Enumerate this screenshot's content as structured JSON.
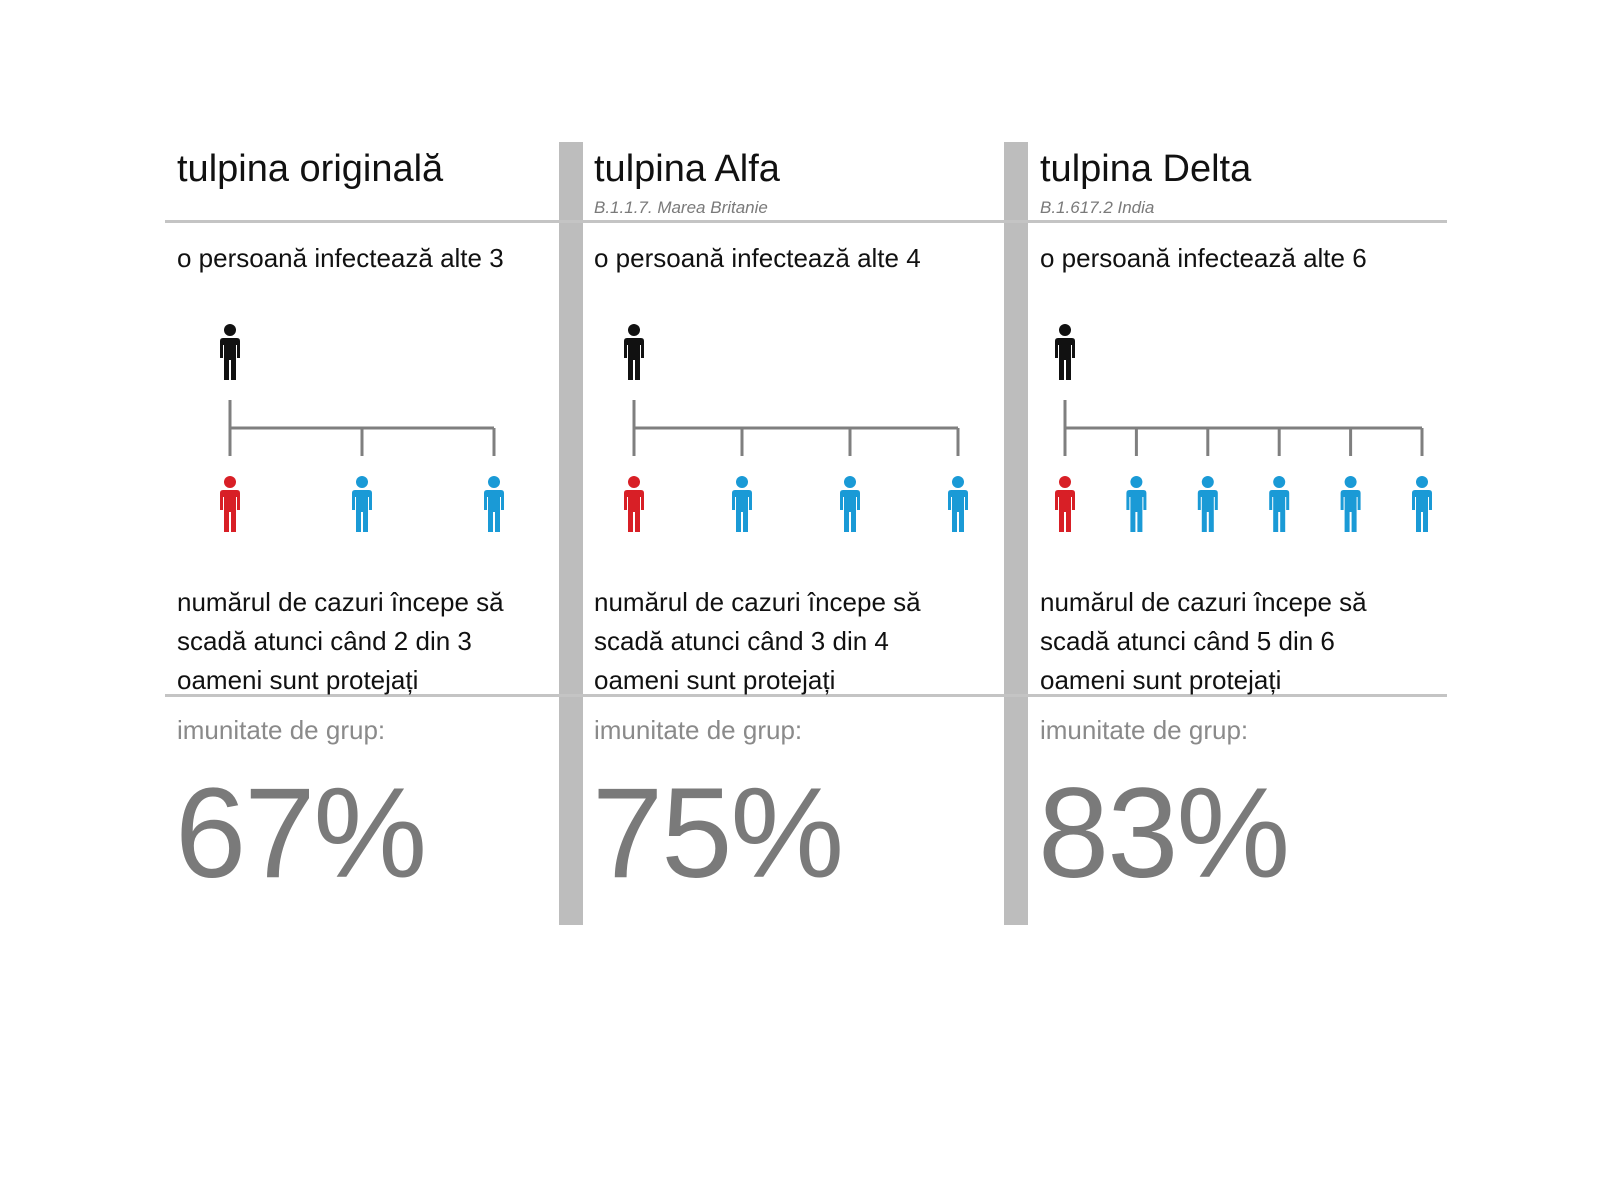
{
  "colors": {
    "source": "#111111",
    "infected": "#d81f26",
    "protected": "#1a9ad6",
    "tree": "#7f7f7f",
    "divider": "#bdbdbd",
    "rule": "#c4c4c4",
    "herd_text": "#8a8a8a",
    "percent": "#7a7a7a"
  },
  "icons": {
    "person": "person-icon"
  },
  "columns": [
    {
      "title": "tulpina originală",
      "subtitle": "",
      "infects": "o persoană infectează alte 3",
      "transmitted_to": 3,
      "desc": [
        "numărul de cazuri începe să",
        "scadă atunci când 2 din 3",
        "oameni sunt protejați"
      ],
      "herd_label": "imunitate de grup:",
      "herd_percent": "67%"
    },
    {
      "title": "tulpina Alfa",
      "subtitle": "B.1.1.7. Marea Britanie",
      "infects": "o persoană infectează alte 4",
      "transmitted_to": 4,
      "desc": [
        "numărul de cazuri începe să",
        "scadă atunci când 3 din 4",
        "oameni sunt protejați"
      ],
      "herd_label": "imunitate de grup:",
      "herd_percent": "75%"
    },
    {
      "title": "tulpina Delta",
      "subtitle": "B.1.617.2 India",
      "infects": "o persoană infectează alte 6",
      "transmitted_to": 6,
      "desc": [
        "numărul de cazuri începe să",
        "scadă atunci când 5 din 6",
        "oameni sunt protejați"
      ],
      "herd_label": "imunitate de grup:",
      "herd_percent": "83%"
    }
  ]
}
